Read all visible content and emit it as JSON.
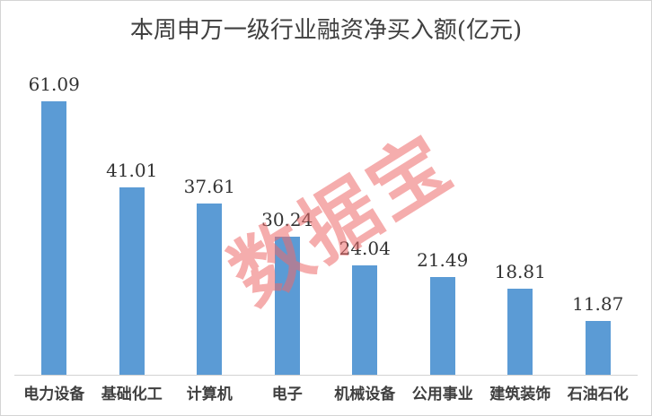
{
  "window": {
    "background": "#FFFFFF",
    "border_color": "#D4D4D4"
  },
  "chart_data": {
    "type": "bar",
    "title": "本周申万一级行业融资净买入额(亿元)",
    "categories": [
      "电力设备",
      "基础化工",
      "计算机",
      "电子",
      "机械设备",
      "公用事业",
      "建筑装饰",
      "石油石化"
    ],
    "values": [
      61.09,
      41.01,
      37.61,
      30.24,
      24.04,
      21.49,
      18.81,
      11.87
    ],
    "value_labels": [
      "61.09",
      "41.01",
      "37.61",
      "30.24",
      "24.04",
      "21.49",
      "18.81",
      "11.87"
    ],
    "xlabel": "",
    "ylabel": "",
    "ylim": [
      0,
      66
    ],
    "grid": false,
    "legend": "none",
    "bar_color": "#5B9BD5",
    "value_label_color": "#333333",
    "category_label_color": "#3F3F3F",
    "axis_line_color": "#D2D2D2",
    "title_color": "#3F3F3F"
  },
  "watermark": {
    "text": "数据宝",
    "color": "#EC6A6A",
    "opacity": 0.55
  }
}
